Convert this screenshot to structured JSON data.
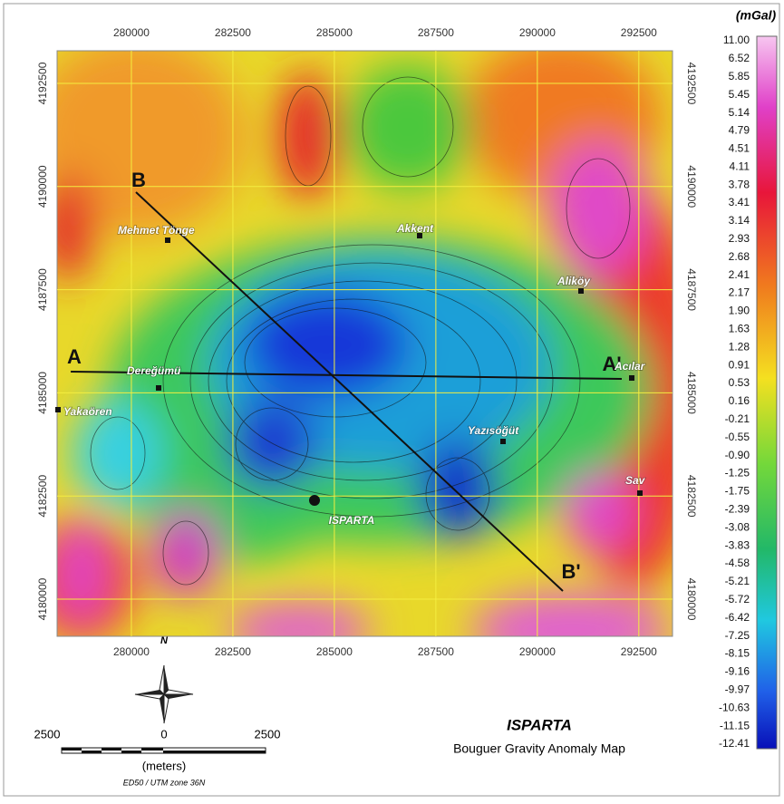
{
  "map": {
    "unit": "(mGal)",
    "title": "ISPARTA",
    "subtitle": "Bouguer Gravity Anomaly Map",
    "xlim": [
      278170,
      293330
    ],
    "ylim": [
      4179100,
      4193290
    ],
    "xticks": [
      280000,
      282500,
      285000,
      287500,
      290000,
      292500
    ],
    "yticks": [
      4180000,
      4182500,
      4185000,
      4187500,
      4190000,
      4192500
    ],
    "legend": [
      "11.00",
      "6.52",
      "5.85",
      "5.45",
      "5.14",
      "4.79",
      "4.51",
      "4.11",
      "3.78",
      "3.41",
      "3.14",
      "2.93",
      "2.68",
      "2.41",
      "2.17",
      "1.90",
      "1.63",
      "1.28",
      "0.91",
      "0.53",
      "0.16",
      "-0.21",
      "-0.55",
      "-0.90",
      "-1.25",
      "-1.75",
      "-2.39",
      "-3.08",
      "-3.83",
      "-4.58",
      "-5.21",
      "-5.72",
      "-6.42",
      "-7.25",
      "-8.15",
      "-9.16",
      "-9.97",
      "-10.63",
      "-11.15",
      "-12.41"
    ],
    "places": [
      "Mehmet Tönge",
      "Akkent",
      "Aliköy",
      "Acılar",
      "Dereğümü",
      "Yakaören",
      "Yazısöğüt",
      "Sav",
      "ISPARTA"
    ],
    "profiles": [
      "A",
      "A'",
      "B",
      "B'"
    ],
    "north": "N",
    "scale_labels": [
      "2500",
      "0",
      "2500"
    ],
    "scale_unit": "(meters)",
    "projection": "ED50 / UTM zone 36N"
  }
}
